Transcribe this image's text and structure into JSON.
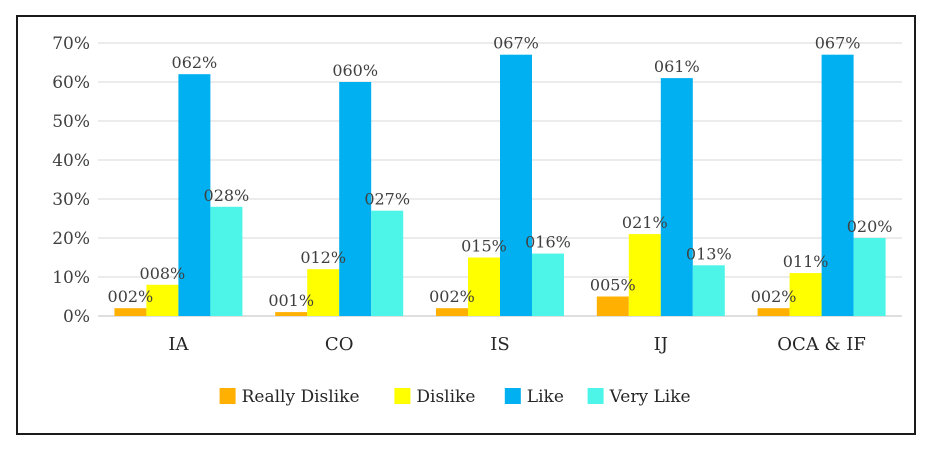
{
  "chart_data": {
    "type": "bar",
    "categories": [
      "IA",
      "CO",
      "IS",
      "IJ",
      "OCA & IF"
    ],
    "series": [
      {
        "name": "Really Dislike",
        "color": "#FFB000",
        "values": [
          2,
          1,
          2,
          5,
          2
        ],
        "labels": [
          "002%",
          "001%",
          "002%",
          "005%",
          "002%"
        ]
      },
      {
        "name": "Dislike",
        "color": "#FFFF00",
        "values": [
          8,
          12,
          15,
          21,
          11
        ],
        "labels": [
          "008%",
          "012%",
          "015%",
          "021%",
          "011%"
        ]
      },
      {
        "name": "Like",
        "color": "#00B0F0",
        "values": [
          62,
          60,
          67,
          61,
          67
        ],
        "labels": [
          "062%",
          "060%",
          "067%",
          "061%",
          "067%"
        ]
      },
      {
        "name": "Very Like",
        "color": "#4DF5E8",
        "values": [
          28,
          27,
          16,
          13,
          20
        ],
        "labels": [
          "028%",
          "027%",
          "016%",
          "013%",
          "020%"
        ]
      }
    ],
    "yticks": [
      "0%",
      "10%",
      "20%",
      "30%",
      "40%",
      "50%",
      "60%",
      "70%"
    ],
    "ylim": [
      0,
      70
    ],
    "grid": true,
    "legend": "bottom"
  }
}
